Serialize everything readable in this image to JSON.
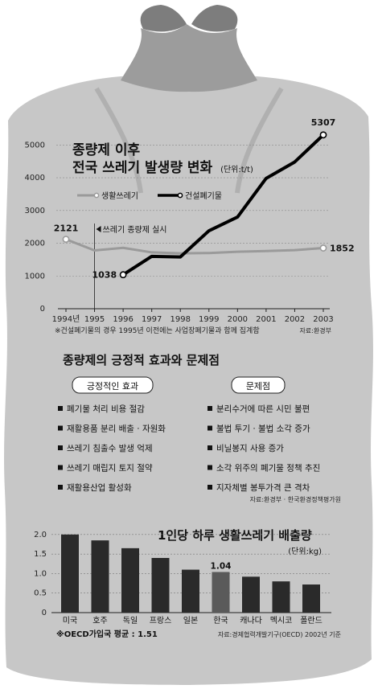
{
  "colors": {
    "bag": "#bdbdbd",
    "bag_dark": "#8f8f8f",
    "line_household": "#9a9a9a",
    "line_construction": "#000000",
    "bar": "#2a2a2a",
    "bar_highlight": "#5a5a5a"
  },
  "chart_data": [
    {
      "type": "line",
      "title": "종량제 이후",
      "subtitle": "전국 쓰레기 발생량 변화",
      "unit_label": "(단위:t/t)",
      "x": [
        "1994년",
        "1995",
        "1996",
        "1997",
        "1998",
        "1999",
        "2000",
        "2001",
        "2002",
        "2003"
      ],
      "yticks": [
        "0",
        "1000",
        "2000",
        "3000",
        "4000",
        "5000"
      ],
      "ylim": [
        0,
        5400
      ],
      "annotation": "쓰레기 종량제 실시",
      "annotation_x": "1995",
      "series": [
        {
          "name": "생활쓰레기",
          "values": [
            2121,
            1780,
            1860,
            1720,
            1690,
            1700,
            1740,
            1760,
            1790,
            1852
          ]
        },
        {
          "name": "건설폐기물",
          "values": [
            null,
            null,
            1038,
            1600,
            1580,
            2380,
            2800,
            3980,
            4480,
            5307
          ]
        }
      ],
      "point_labels": [
        {
          "text": "2121",
          "series": 0,
          "index": 0
        },
        {
          "text": "1852",
          "series": 0,
          "index": 9
        },
        {
          "text": "1038",
          "series": 1,
          "index": 2
        },
        {
          "text": "5307",
          "series": 1,
          "index": 9
        }
      ],
      "note": "※건설폐기물의 경우 1995년 이전에는 사업장폐기물과 함께 집계함",
      "source": "자료:환경부"
    },
    {
      "type": "bar",
      "title": "1인당 하루 생활쓰레기 배출량",
      "unit_label": "(단위:kg)",
      "categories": [
        "미국",
        "호주",
        "독일",
        "프랑스",
        "일본",
        "한국",
        "캐나다",
        "멕시코",
        "폴란드"
      ],
      "values": [
        2.0,
        1.85,
        1.65,
        1.4,
        1.1,
        1.04,
        0.92,
        0.8,
        0.72
      ],
      "highlight_index": 5,
      "highlight_label": "1.04",
      "yticks": [
        "0",
        "0.5",
        "1.0",
        "1.5",
        "2.0"
      ],
      "ylim": [
        0,
        2.1
      ],
      "note": "※OECD가입국 평균 : 1.51",
      "source": "자료:경제협력개발기구(OECD) 2002년 기준"
    }
  ],
  "effects": {
    "title": "종량제의 긍정적 효과와 문제점",
    "positive_header": "긍정적인 효과",
    "problem_header": "문제점",
    "positive_items": [
      "폐기물 처리 비용 절감",
      "재활용품 분리 배출 · 자원화",
      "쓰레기 침출수 발생 억제",
      "쓰레기 매립지 토지 절약",
      "재활용산업 활성화"
    ],
    "problem_items": [
      "분리수거에 따른 시민 불편",
      "불법 투기 · 불법 소각 증가",
      "비닐봉지 사용 증가",
      "소각 위주의 폐기물 정책 추진",
      "지자체별 봉투가격 큰 격차"
    ],
    "source": "자료:환경부 · 한국환경정책평가원"
  }
}
